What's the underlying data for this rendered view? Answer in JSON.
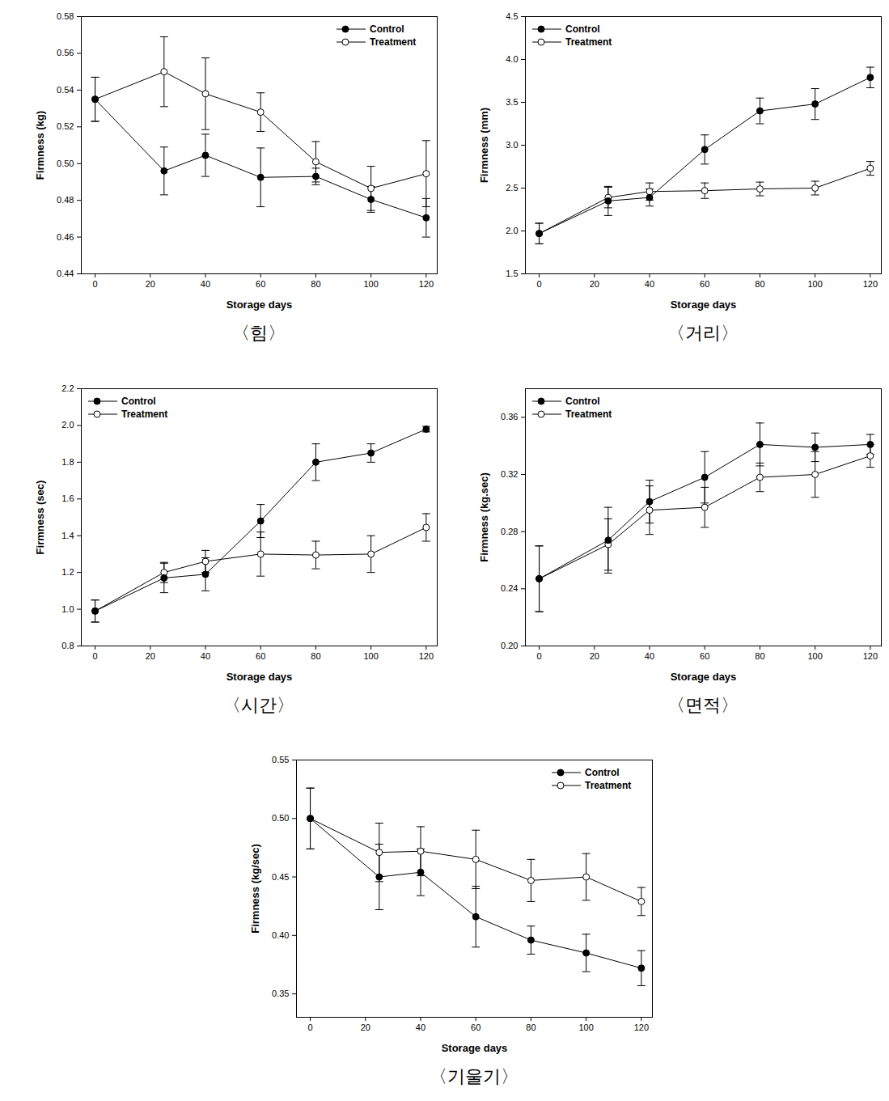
{
  "chart_data": [
    {
      "type": "line",
      "title": "〈힘〉",
      "x_label": "Storage days",
      "y_label": "Firmness (kg)",
      "x": [
        0,
        25,
        40,
        60,
        80,
        100,
        120
      ],
      "xlim": [
        -5,
        124
      ],
      "xticks": [
        0,
        20,
        40,
        60,
        80,
        100,
        120
      ],
      "ylim": [
        0.44,
        0.58
      ],
      "yticks": [
        0.44,
        0.46,
        0.48,
        {
          "value": 0.5,
          "label": "0.50"
        },
        0.52,
        0.54,
        0.56,
        0.58
      ],
      "legend": "upper right",
      "series": [
        {
          "name": "Control",
          "color": "#000000",
          "marker": "filled_circle",
          "values": [
            0.535,
            0.496,
            0.5045,
            0.4925,
            0.493,
            0.4805,
            0.4705
          ],
          "errors": [
            0.012,
            0.013,
            0.0115,
            0.016,
            0.0045,
            0.007,
            0.0105
          ]
        },
        {
          "name": "Treatment",
          "color": "#000000",
          "marker": "open_circle",
          "values": [
            0.535,
            0.55,
            0.538,
            0.528,
            0.501,
            0.4865,
            0.4945
          ],
          "errors": [
            0.012,
            0.019,
            0.0195,
            0.0105,
            0.011,
            0.012,
            0.018
          ]
        }
      ]
    },
    {
      "type": "line",
      "title": "〈거리〉",
      "x_label": "Storage days",
      "y_label": "Firmness (mm)",
      "x": [
        0,
        25,
        40,
        60,
        80,
        100,
        120
      ],
      "xlim": [
        -5,
        124
      ],
      "xticks": [
        0,
        20,
        40,
        60,
        80,
        100,
        120
      ],
      "ylim": [
        1.5,
        4.5
      ],
      "yticks": [
        1.5,
        {
          "value": 2,
          "label": "2.0"
        },
        2.5,
        {
          "value": 3,
          "label": "3.0"
        },
        3.5,
        {
          "value": 4,
          "label": "4.0"
        },
        4.5
      ],
      "legend": "upper left",
      "series": [
        {
          "name": "Control",
          "color": "#000000",
          "marker": "filled_circle",
          "values": [
            1.97,
            2.35,
            2.39,
            2.95,
            3.4,
            3.48,
            3.79
          ],
          "errors": [
            0.12,
            0.17,
            0.1,
            0.17,
            0.15,
            0.18,
            0.12
          ]
        },
        {
          "name": "Treatment",
          "color": "#000000",
          "marker": "open_circle",
          "values": [
            1.97,
            2.39,
            2.46,
            2.47,
            2.49,
            2.5,
            2.73
          ],
          "errors": [
            0.12,
            0.12,
            0.1,
            0.09,
            0.08,
            0.08,
            0.08
          ]
        }
      ]
    },
    {
      "type": "line",
      "title": "〈시간〉",
      "x_label": "Storage days",
      "y_label": "Firmness (sec)",
      "x": [
        0,
        25,
        40,
        60,
        80,
        100,
        120
      ],
      "xlim": [
        -5,
        124
      ],
      "xticks": [
        0,
        20,
        40,
        60,
        80,
        100,
        120
      ],
      "ylim": [
        0.8,
        2.2
      ],
      "yticks": [
        0.8,
        {
          "value": 1,
          "label": "1.0"
        },
        1.2,
        1.4,
        1.6,
        1.8,
        {
          "value": 2,
          "label": "2.0"
        },
        2.2
      ],
      "legend": "upper left",
      "series": [
        {
          "name": "Control",
          "color": "#000000",
          "marker": "filled_circle",
          "values": [
            0.99,
            1.17,
            1.19,
            1.48,
            1.8,
            1.85,
            1.98
          ],
          "errors": [
            0.06,
            0.08,
            0.09,
            0.09,
            0.1,
            0.05,
            0.015
          ]
        },
        {
          "name": "Treatment",
          "color": "#000000",
          "marker": "open_circle",
          "values": [
            0.99,
            1.2,
            1.26,
            1.3,
            1.295,
            1.3,
            1.445
          ],
          "errors": [
            0.06,
            0.055,
            0.06,
            0.12,
            0.075,
            0.1,
            0.075
          ]
        }
      ]
    },
    {
      "type": "line",
      "title": "〈면적〉",
      "x_label": "Storage days",
      "y_label": "Firmness (kg.sec)",
      "x": [
        0,
        25,
        40,
        60,
        80,
        100,
        120
      ],
      "xlim": [
        -5,
        124
      ],
      "xticks": [
        0,
        20,
        40,
        60,
        80,
        100,
        120
      ],
      "ylim": [
        0.2,
        0.38
      ],
      "yticks": [
        {
          "value": 0.2,
          "label": "0.20"
        },
        0.24,
        0.28,
        0.32,
        0.36
      ],
      "legend": "upper left",
      "series": [
        {
          "name": "Control",
          "color": "#000000",
          "marker": "filled_circle",
          "values": [
            0.247,
            0.274,
            0.301,
            0.318,
            0.341,
            0.339,
            0.341
          ],
          "errors": [
            0.023,
            0.023,
            0.015,
            0.018,
            0.015,
            0.01,
            0.007
          ]
        },
        {
          "name": "Treatment",
          "color": "#000000",
          "marker": "open_circle",
          "values": [
            0.247,
            0.271,
            0.295,
            0.297,
            0.318,
            0.32,
            0.333
          ],
          "errors": [
            0.023,
            0.018,
            0.017,
            0.014,
            0.01,
            0.016,
            0.008
          ]
        }
      ]
    },
    {
      "type": "line",
      "title": "〈기울기〉",
      "x_label": "Storage days",
      "y_label": "Firmness (kg/sec)",
      "x": [
        0,
        25,
        40,
        60,
        80,
        100,
        120
      ],
      "xlim": [
        -5,
        124
      ],
      "xticks": [
        0,
        20,
        40,
        60,
        80,
        100,
        120
      ],
      "ylim": [
        0.33,
        0.55
      ],
      "yticks": [
        0.35,
        {
          "value": 0.4,
          "label": "0.40"
        },
        0.45,
        {
          "value": 0.5,
          "label": "0.50"
        },
        0.55
      ],
      "legend": "upper right",
      "series": [
        {
          "name": "Control",
          "color": "#000000",
          "marker": "filled_circle",
          "values": [
            0.5,
            0.45,
            0.454,
            0.416,
            0.396,
            0.385,
            0.372
          ],
          "errors": [
            0.026,
            0.028,
            0.02,
            0.026,
            0.012,
            0.016,
            0.015
          ]
        },
        {
          "name": "Treatment",
          "color": "#000000",
          "marker": "open_circle",
          "values": [
            0.5,
            0.471,
            0.472,
            0.465,
            0.447,
            0.45,
            0.429
          ],
          "errors": [
            0.026,
            0.025,
            0.021,
            0.025,
            0.018,
            0.02,
            0.012
          ]
        }
      ]
    }
  ]
}
